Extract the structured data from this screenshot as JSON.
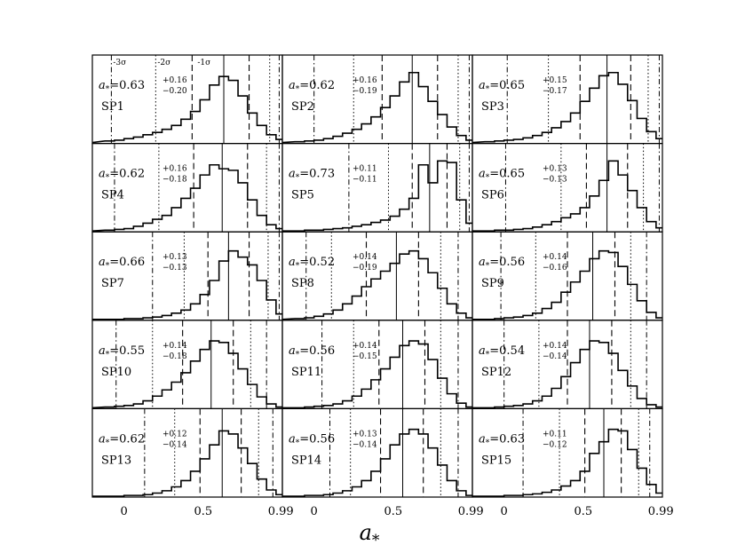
{
  "chart_data": {
    "type": "histogram-grid",
    "layout": {
      "rows": 5,
      "cols": 3
    },
    "xlabel": "a_*",
    "xlim": [
      -0.2,
      1.0
    ],
    "x_ticks": [
      0,
      0.5,
      0.99
    ],
    "x_tick_labels": [
      "0",
      "0.5",
      "0.99"
    ],
    "sigma_labels": [
      "-3σ",
      "-2σ",
      "-1σ"
    ],
    "bin_edges": [
      -0.12,
      -0.06,
      0.0,
      0.06,
      0.12,
      0.18,
      0.24,
      0.3,
      0.36,
      0.42,
      0.48,
      0.54,
      0.6,
      0.66,
      0.72,
      0.78,
      0.84,
      0.9,
      0.96,
      1.02
    ],
    "panels": [
      {
        "name": "SP1",
        "a": "0.63",
        "up": "+0.16",
        "lo": "−0.20",
        "median": 0.63,
        "s1": [
          0.43,
          0.79
        ],
        "s2": [
          0.2,
          0.92
        ],
        "s3": [
          -0.08,
          0.98
        ],
        "counts": [
          0.02,
          0.03,
          0.05,
          0.07,
          0.1,
          0.13,
          0.17,
          0.22,
          0.3,
          0.4,
          0.55,
          0.74,
          0.85,
          0.8,
          0.6,
          0.38,
          0.22,
          0.1,
          0.04
        ]
      },
      {
        "name": "SP2",
        "a": "0.62",
        "up": "+0.16",
        "lo": "−0.19",
        "median": 0.62,
        "s1": [
          0.43,
          0.78
        ],
        "s2": [
          0.25,
          0.91
        ],
        "s3": [
          0.0,
          0.98
        ],
        "counts": [
          0.01,
          0.02,
          0.03,
          0.05,
          0.08,
          0.12,
          0.17,
          0.24,
          0.33,
          0.45,
          0.6,
          0.78,
          0.9,
          0.72,
          0.53,
          0.36,
          0.2,
          0.09,
          0.03
        ]
      },
      {
        "name": "SP3",
        "a": "0.65",
        "up": "+0.15",
        "lo": "−0.17",
        "median": 0.65,
        "s1": [
          0.48,
          0.8
        ],
        "s2": [
          0.28,
          0.91
        ],
        "s3": [
          0.02,
          0.98
        ],
        "counts": [
          0.01,
          0.02,
          0.03,
          0.04,
          0.06,
          0.09,
          0.13,
          0.19,
          0.27,
          0.38,
          0.53,
          0.7,
          0.86,
          0.9,
          0.75,
          0.54,
          0.31,
          0.14,
          0.05
        ]
      },
      {
        "name": "SP4",
        "a": "0.62",
        "up": "+0.16",
        "lo": "−0.18",
        "median": 0.62,
        "s1": [
          0.44,
          0.78
        ],
        "s2": [
          0.22,
          0.9
        ],
        "s3": [
          -0.06,
          0.98
        ],
        "counts": [
          0.01,
          0.02,
          0.03,
          0.06,
          0.1,
          0.15,
          0.2,
          0.3,
          0.42,
          0.55,
          0.72,
          0.85,
          0.8,
          0.78,
          0.62,
          0.4,
          0.2,
          0.08,
          0.03
        ]
      },
      {
        "name": "SP5",
        "a": "0.73",
        "up": "+0.11",
        "lo": "−0.11",
        "median": 0.73,
        "s1": [
          0.62,
          0.84
        ],
        "s2": [
          0.47,
          0.92
        ],
        "s3": [
          0.22,
          0.98
        ],
        "counts": [
          0.0,
          0.01,
          0.01,
          0.02,
          0.03,
          0.04,
          0.06,
          0.08,
          0.11,
          0.14,
          0.19,
          0.28,
          0.42,
          0.85,
          0.62,
          0.9,
          0.88,
          0.4,
          0.1
        ]
      },
      {
        "name": "SP6",
        "a": "0.65",
        "up": "+0.13",
        "lo": "−0.13",
        "median": 0.65,
        "s1": [
          0.52,
          0.78
        ],
        "s2": [
          0.36,
          0.88
        ],
        "s3": [
          0.01,
          0.98
        ],
        "counts": [
          0.0,
          0.01,
          0.01,
          0.02,
          0.03,
          0.05,
          0.08,
          0.12,
          0.17,
          0.22,
          0.3,
          0.45,
          0.65,
          0.9,
          0.72,
          0.52,
          0.3,
          0.12,
          0.04
        ]
      },
      {
        "name": "SP7",
        "a": "0.66",
        "up": "+0.13",
        "lo": "−0.13",
        "median": 0.66,
        "s1": [
          0.53,
          0.79
        ],
        "s2": [
          0.38,
          0.91
        ],
        "s3": [
          0.18,
          0.98
        ],
        "counts": [
          0.0,
          0.0,
          0.01,
          0.01,
          0.02,
          0.03,
          0.05,
          0.08,
          0.12,
          0.2,
          0.32,
          0.5,
          0.75,
          0.88,
          0.8,
          0.7,
          0.5,
          0.25,
          0.07
        ]
      },
      {
        "name": "SP8",
        "a": "0.52",
        "up": "+0.14",
        "lo": "−0.19",
        "median": 0.52,
        "s1": [
          0.33,
          0.66
        ],
        "s2": [
          0.11,
          0.8
        ],
        "s3": [
          -0.05,
          0.91
        ],
        "counts": [
          0.01,
          0.02,
          0.04,
          0.07,
          0.12,
          0.2,
          0.3,
          0.42,
          0.52,
          0.62,
          0.72,
          0.84,
          0.88,
          0.78,
          0.6,
          0.4,
          0.2,
          0.08,
          0.02
        ]
      },
      {
        "name": "SP9",
        "a": "0.56",
        "up": "+0.14",
        "lo": "−0.16",
        "median": 0.56,
        "s1": [
          0.4,
          0.7
        ],
        "s2": [
          0.2,
          0.8
        ],
        "s3": [
          -0.02,
          0.9
        ],
        "counts": [
          0.0,
          0.01,
          0.02,
          0.03,
          0.05,
          0.08,
          0.14,
          0.22,
          0.35,
          0.48,
          0.62,
          0.78,
          0.88,
          0.86,
          0.68,
          0.45,
          0.24,
          0.09,
          0.02
        ]
      },
      {
        "name": "SP10",
        "a": "0.55",
        "up": "+0.14",
        "lo": "−0.18",
        "median": 0.55,
        "s1": [
          0.37,
          0.69
        ],
        "s2": [
          0.18,
          0.8
        ],
        "s3": [
          -0.05,
          0.9
        ],
        "counts": [
          0.01,
          0.02,
          0.03,
          0.05,
          0.09,
          0.15,
          0.23,
          0.33,
          0.45,
          0.6,
          0.75,
          0.86,
          0.84,
          0.7,
          0.5,
          0.3,
          0.14,
          0.05,
          0.01
        ]
      },
      {
        "name": "SP11",
        "a": "0.56",
        "up": "+0.14",
        "lo": "−0.15",
        "median": 0.56,
        "s1": [
          0.41,
          0.7
        ],
        "s2": [
          0.25,
          0.8
        ],
        "s3": [
          0.05,
          0.91
        ],
        "counts": [
          0.0,
          0.01,
          0.02,
          0.03,
          0.05,
          0.09,
          0.15,
          0.24,
          0.36,
          0.5,
          0.65,
          0.8,
          0.86,
          0.82,
          0.62,
          0.38,
          0.18,
          0.06,
          0.01
        ]
      },
      {
        "name": "SP12",
        "a": "0.54",
        "up": "+0.14",
        "lo": "−0.14",
        "median": 0.54,
        "s1": [
          0.4,
          0.68
        ],
        "s2": [
          0.22,
          0.8
        ],
        "s3": [
          0.0,
          0.9
        ],
        "counts": [
          0.0,
          0.01,
          0.02,
          0.03,
          0.05,
          0.09,
          0.15,
          0.25,
          0.4,
          0.58,
          0.75,
          0.86,
          0.84,
          0.7,
          0.48,
          0.28,
          0.12,
          0.04,
          0.01
        ]
      },
      {
        "name": "SP13",
        "a": "0.62",
        "up": "+0.12",
        "lo": "−0.14",
        "median": 0.62,
        "s1": [
          0.48,
          0.74
        ],
        "s2": [
          0.32,
          0.85
        ],
        "s3": [
          0.13,
          0.94
        ],
        "counts": [
          0.0,
          0.0,
          0.01,
          0.01,
          0.02,
          0.04,
          0.07,
          0.12,
          0.2,
          0.32,
          0.48,
          0.66,
          0.84,
          0.8,
          0.62,
          0.42,
          0.22,
          0.08,
          0.02
        ]
      },
      {
        "name": "SP14",
        "a": "0.56",
        "up": "+0.13",
        "lo": "−0.14",
        "median": 0.56,
        "s1": [
          0.42,
          0.69
        ],
        "s2": [
          0.23,
          0.8
        ],
        "s3": [
          0.1,
          0.91
        ],
        "counts": [
          0.0,
          0.01,
          0.01,
          0.02,
          0.04,
          0.07,
          0.12,
          0.2,
          0.32,
          0.48,
          0.66,
          0.8,
          0.86,
          0.8,
          0.62,
          0.4,
          0.2,
          0.07,
          0.01
        ]
      },
      {
        "name": "SP15",
        "a": "0.63",
        "up": "+0.11",
        "lo": "−0.12",
        "median": 0.63,
        "s1": [
          0.51,
          0.74
        ],
        "s2": [
          0.35,
          0.85
        ],
        "s3": [
          0.12,
          0.92
        ],
        "counts": [
          0.0,
          0.0,
          0.01,
          0.01,
          0.02,
          0.03,
          0.05,
          0.08,
          0.13,
          0.2,
          0.32,
          0.55,
          0.7,
          0.86,
          0.84,
          0.6,
          0.36,
          0.15,
          0.04
        ]
      }
    ]
  }
}
